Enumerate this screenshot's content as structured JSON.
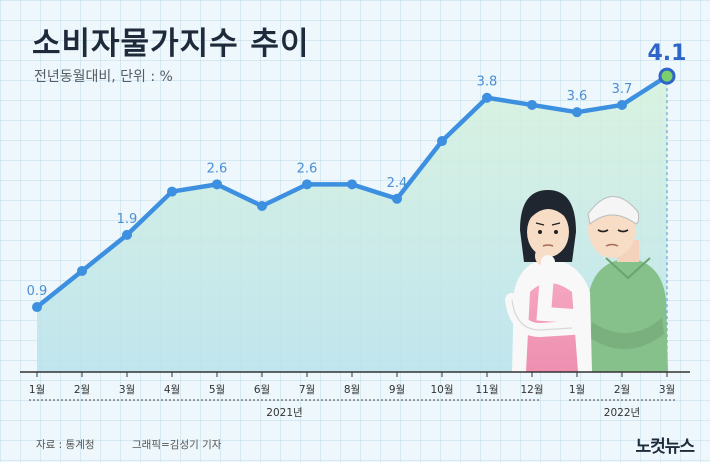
{
  "header": {
    "title": "소비자물가지수 추이",
    "subtitle": "전년동월대비, 단위 : %"
  },
  "footer": {
    "source": "자료 : 통계청",
    "credit": "그래픽=김성기 기자",
    "logo": "노컷뉴스"
  },
  "colors": {
    "line": "#3d8fe0",
    "highlight": "#2f64c8",
    "last_point": "#7cd06a",
    "label": "#4a8fd4"
  },
  "chart_data": {
    "type": "line",
    "categories": [
      "1월",
      "2월",
      "3월",
      "4월",
      "5월",
      "6월",
      "7월",
      "8월",
      "9월",
      "10월",
      "11월",
      "12월",
      "1월",
      "2월",
      "3월"
    ],
    "year_groups": [
      {
        "label": "2021년",
        "start": 0,
        "end": 11
      },
      {
        "label": "2022년",
        "start": 12,
        "end": 14
      }
    ],
    "series": [
      {
        "values": [
          0.9,
          1.4,
          1.9,
          2.5,
          2.6,
          2.3,
          2.6,
          2.6,
          2.4,
          3.2,
          3.8,
          3.7,
          3.6,
          3.7,
          4.1
        ]
      }
    ],
    "data_labels": [
      {
        "index": 0,
        "text": "0.9"
      },
      {
        "index": 2,
        "text": "1.9"
      },
      {
        "index": 4,
        "text": "2.6"
      },
      {
        "index": 6,
        "text": "2.6"
      },
      {
        "index": 8,
        "text": "2.4"
      },
      {
        "index": 10,
        "text": "3.8"
      },
      {
        "index": 12,
        "text": "3.6"
      },
      {
        "index": 13,
        "text": "3.7"
      },
      {
        "index": 14,
        "text": "4.1",
        "highlight": true
      }
    ],
    "ylim": [
      0,
      4.6
    ],
    "grid": true
  }
}
